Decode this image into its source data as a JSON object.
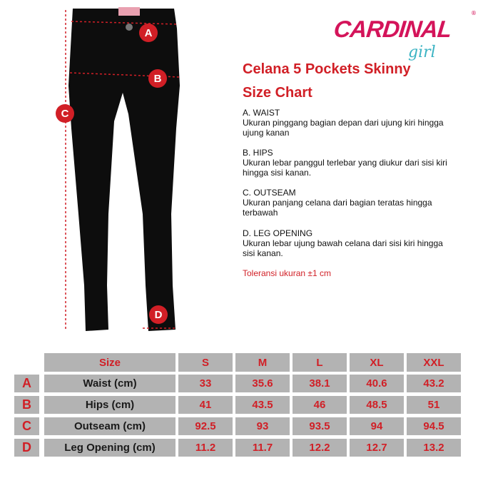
{
  "brand": {
    "name": "CARDINAL",
    "sub": "girl",
    "reg": "®"
  },
  "title": "Celana 5 Pockets Skinny",
  "subtitle": "Size Chart",
  "markers": [
    "A",
    "B",
    "C",
    "D"
  ],
  "descriptions": [
    {
      "heading": "A. WAIST",
      "text": "Ukuran pinggang bagian depan dari ujung kiri hingga ujung kanan"
    },
    {
      "heading": "B. HIPS",
      "text": "Ukuran lebar panggul terlebar yang diukur dari sisi kiri hingga sisi kanan."
    },
    {
      "heading": "C. OUTSEAM",
      "text": "Ukuran panjang celana dari bagian teratas hingga terbawah"
    },
    {
      "heading": "D. LEG OPENING",
      "text": "Ukuran lebar ujung bawah celana dari sisi kiri hingga sisi kanan."
    }
  ],
  "tolerance": "Toleransi ukuran ±1 cm",
  "colors": {
    "accent": "#d11f26",
    "brand": "#d4145a",
    "brand_sub": "#3bb3c3",
    "cell": "#b3b3b3"
  },
  "table": {
    "header": [
      "Size",
      "S",
      "M",
      "L",
      "XL",
      "XXL"
    ],
    "rows": [
      {
        "letter": "A",
        "label": "Waist (cm)",
        "values": [
          "33",
          "35.6",
          "38.1",
          "40.6",
          "43.2"
        ]
      },
      {
        "letter": "B",
        "label": "Hips (cm)",
        "values": [
          "41",
          "43.5",
          "46",
          "48.5",
          "51"
        ]
      },
      {
        "letter": "C",
        "label": "Outseam (cm)",
        "values": [
          "92.5",
          "93",
          "93.5",
          "94",
          "94.5"
        ]
      },
      {
        "letter": "D",
        "label": "Leg Opening (cm)",
        "values": [
          "11.2",
          "11.7",
          "12.2",
          "12.7",
          "13.2"
        ]
      }
    ]
  }
}
